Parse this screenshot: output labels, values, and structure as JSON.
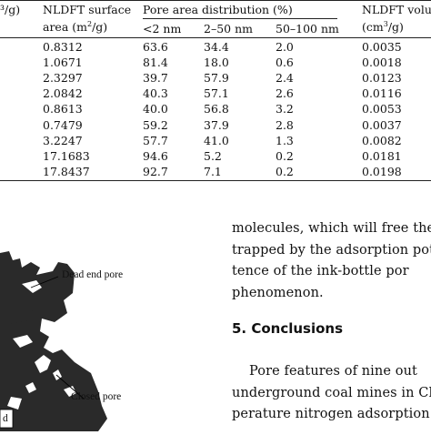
{
  "table": {
    "headers": {
      "col0_unit": "³/g)",
      "surface_line1": "NLDFT surface",
      "surface_line2_pre": "area (m",
      "surface_line2_sup": "2",
      "surface_line2_post": "/g)",
      "pore_dist": "Pore area distribution (%)",
      "sub_lt2": "<2 nm",
      "sub_2_50": "2–50 nm",
      "sub_50_100": "50–100 nm",
      "volume_line1": "NLDFT volum",
      "volume_line2_pre": "(cm",
      "volume_line2_sup": "3",
      "volume_line2_post": "/g)"
    },
    "rows": [
      [
        "0.8312",
        "63.6",
        "34.4",
        "2.0",
        "0.0035"
      ],
      [
        "1.0671",
        "81.4",
        "18.0",
        "0.6",
        "0.0018"
      ],
      [
        "2.3297",
        "39.7",
        "57.9",
        "2.4",
        "0.0123"
      ],
      [
        "2.0842",
        "40.3",
        "57.1",
        "2.6",
        "0.0116"
      ],
      [
        "0.8613",
        "40.0",
        "56.8",
        "3.2",
        "0.0053"
      ],
      [
        "0.7479",
        "59.2",
        "37.9",
        "2.8",
        "0.0037"
      ],
      [
        "3.2247",
        "57.7",
        "41.0",
        "1.3",
        "0.0082"
      ],
      [
        "17.1683",
        "94.6",
        "5.2",
        "0.2",
        "0.0181"
      ],
      [
        "17.8437",
        "92.7",
        "7.1",
        "0.2",
        "0.0198"
      ]
    ]
  },
  "figure": {
    "label_dead_end": "Dead end pore",
    "label_closed": "Closed pore",
    "label_partial": "d"
  },
  "text": {
    "line1": "molecules, which will free the",
    "line2": "trapped by the adsorption pot",
    "line3": "tence of the ink-bottle por",
    "line4": "phenomenon.",
    "section_heading": "5. Conclusions",
    "line5": "Pore features of nine out",
    "line6": "underground coal mines in Ch",
    "line7": "perature nitrogen adsorption t"
  }
}
